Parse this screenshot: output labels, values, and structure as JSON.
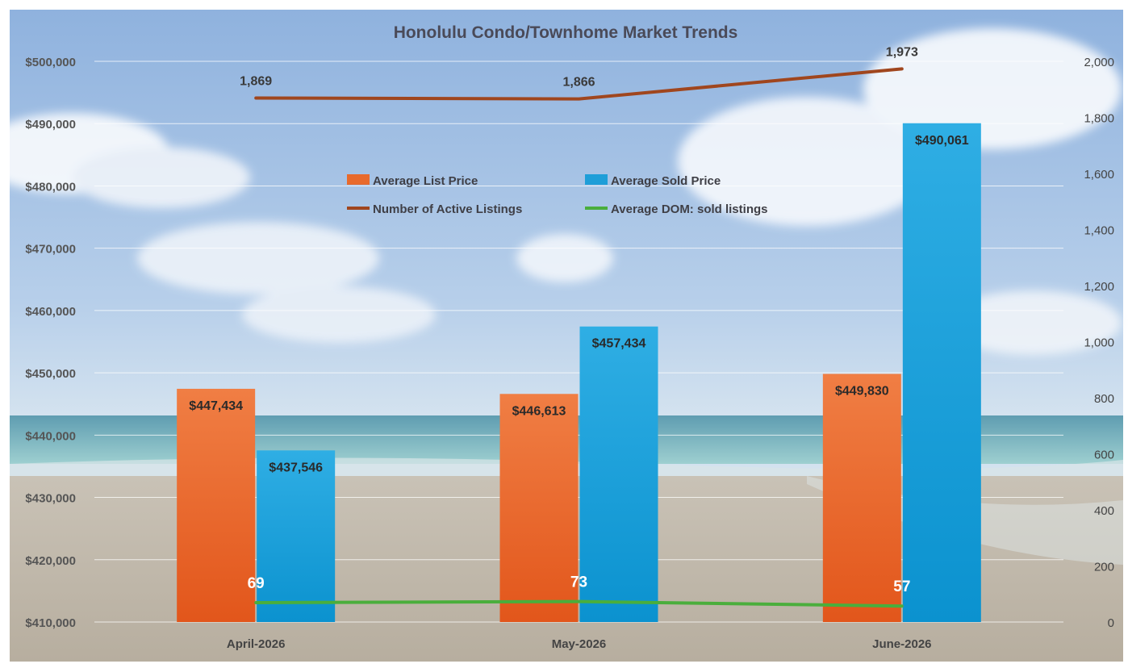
{
  "chart_data": {
    "type": "bar",
    "title": "Honolulu Condo/Townhome Market Trends",
    "categories": [
      "April-2026",
      "May-2026",
      "June-2026"
    ],
    "y_left": {
      "range": [
        410000,
        500000
      ],
      "step": 10000,
      "tick_labels": [
        "$410,000",
        "$420,000",
        "$430,000",
        "$440,000",
        "$450,000",
        "$460,000",
        "$470,000",
        "$480,000",
        "$490,000",
        "$500,000"
      ]
    },
    "y_right": {
      "range": [
        0,
        2000
      ],
      "step": 200,
      "tick_labels": [
        "0",
        "200",
        "400",
        "600",
        "800",
        "1,000",
        "1,200",
        "1,400",
        "1,600",
        "1,800",
        "2,000"
      ]
    },
    "series": [
      {
        "name": "Average List Price",
        "type": "bar",
        "axis": "left",
        "color": "#E86A2C",
        "values": [
          447434,
          446613,
          449830
        ],
        "labels": [
          "$447,434",
          "$446,613",
          "$449,830"
        ]
      },
      {
        "name": "Average Sold Price",
        "type": "bar",
        "axis": "left",
        "color": "#1E9ED8",
        "values": [
          437546,
          457434,
          490061
        ],
        "labels": [
          "$437,546",
          "$457,434",
          "$490,061"
        ]
      },
      {
        "name": "Number of Active Listings",
        "type": "line",
        "axis": "right",
        "color": "#A0461E",
        "values": [
          1869,
          1866,
          1973
        ],
        "labels": [
          "1,869",
          "1,866",
          "1,973"
        ]
      },
      {
        "name": "Average DOM: sold listings",
        "type": "line",
        "axis": "right",
        "color": "#4AAE3C",
        "values": [
          69,
          73,
          57
        ],
        "labels": [
          "69",
          "73",
          "57"
        ]
      }
    ],
    "legend_position": "center",
    "grid": true,
    "background": "beach-scene"
  }
}
